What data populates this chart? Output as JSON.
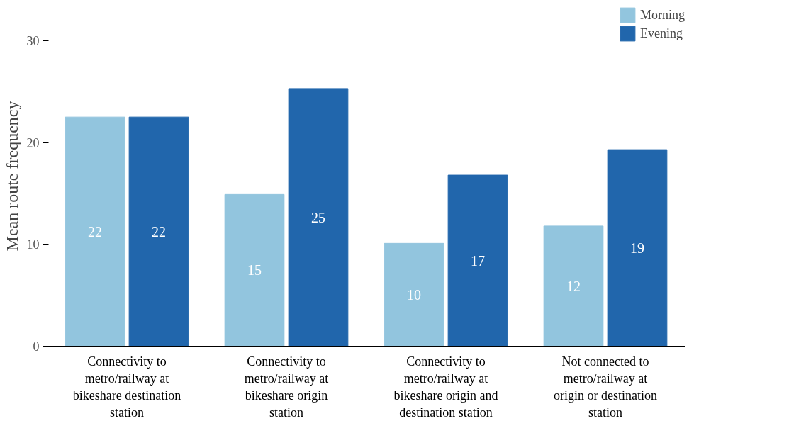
{
  "chart_data": {
    "type": "bar",
    "ylabel": "Mean route frequency",
    "categories": [
      "Connectivity to metro/railway at bikeshare destination station",
      "Connectivity to metro/railway at bikeshare origin station",
      "Connectivity to metro/railway at bikeshare origin and destination station",
      "Not connected to metro/railway at origin or destination station"
    ],
    "series": [
      {
        "name": "Morning",
        "color": "#92c5de",
        "values": [
          22.5,
          14.9,
          10.1,
          11.8
        ],
        "value_labels": [
          "22",
          "15",
          "10",
          "12"
        ]
      },
      {
        "name": "Evening",
        "color": "#2166ac",
        "values": [
          22.5,
          25.3,
          16.8,
          19.3
        ],
        "value_labels": [
          "22",
          "25",
          "17",
          "19"
        ]
      }
    ],
    "ylim": [
      0,
      33.4
    ],
    "yticks": [
      0,
      10,
      20,
      30
    ],
    "grid": false,
    "legend": "top right"
  }
}
